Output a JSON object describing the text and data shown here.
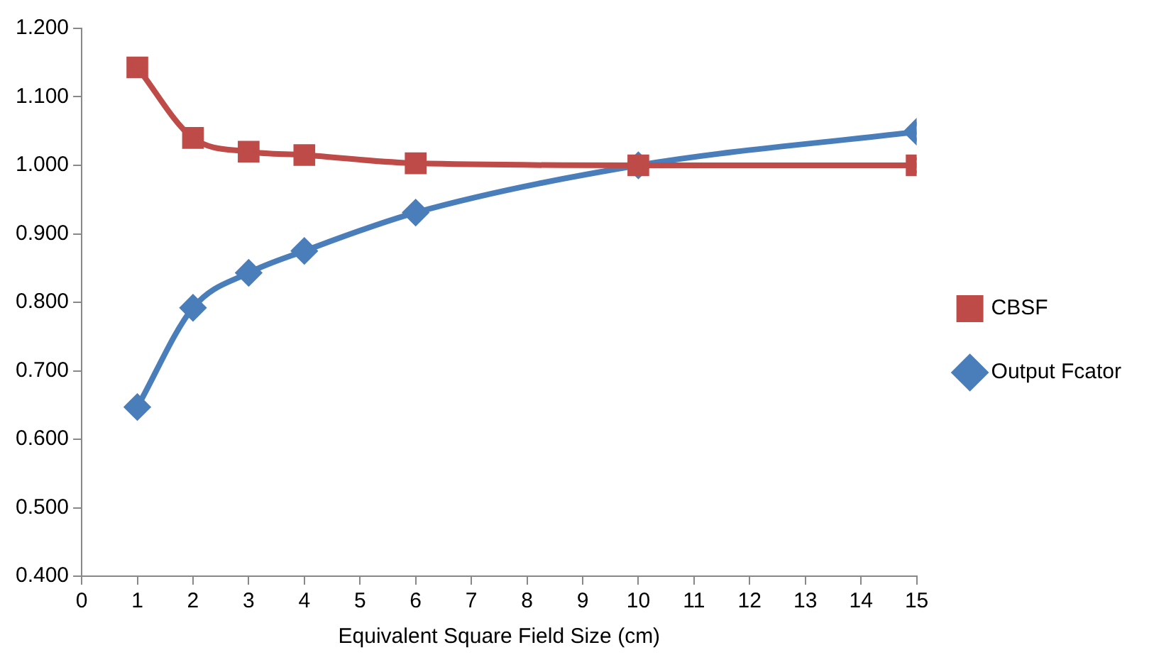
{
  "chart_data": {
    "type": "line",
    "xlabel": "Equivalent Square Field Size (cm)",
    "x": [
      1,
      2,
      3,
      4,
      6,
      10,
      15
    ],
    "series": [
      {
        "name": "Output Fcator",
        "color": "#4a7ebb",
        "marker": "diamond",
        "values": [
          0.647,
          0.792,
          0.843,
          0.875,
          0.931,
          1.0,
          1.049
        ]
      },
      {
        "name": "CBSF",
        "color": "#be4b48",
        "marker": "square",
        "values": [
          1.143,
          1.04,
          1.02,
          1.015,
          1.003,
          1.0,
          1.0
        ]
      }
    ],
    "xlim": [
      0,
      15
    ],
    "xticks": [
      0,
      1,
      2,
      3,
      4,
      5,
      6,
      7,
      8,
      9,
      10,
      11,
      12,
      13,
      14,
      15
    ],
    "ylim": [
      0.4,
      1.2
    ],
    "yticks": [
      {
        "value": 0.4,
        "label": "0.400"
      },
      {
        "value": 0.5,
        "label": "0.500"
      },
      {
        "value": 0.6,
        "label": "0.600"
      },
      {
        "value": 0.7,
        "label": "0.700"
      },
      {
        "value": 0.8,
        "label": "0.800"
      },
      {
        "value": 0.9,
        "label": "0.900"
      },
      {
        "value": 1.0,
        "label": "1.000"
      },
      {
        "value": 1.1,
        "label": "1.100"
      },
      {
        "value": 1.2,
        "label": "1.200"
      }
    ],
    "grid": false,
    "legend": "right",
    "line_style": "solid"
  }
}
